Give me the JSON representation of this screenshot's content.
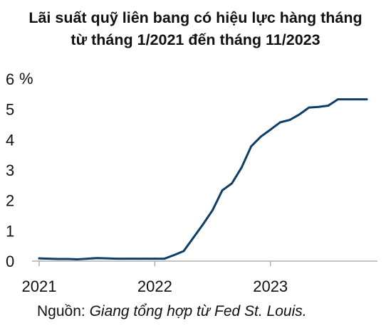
{
  "chart_data": {
    "type": "line",
    "title_line1": "Lãi suất quỹ liên bang có hiệu lực hàng tháng",
    "title_line2": "từ tháng 1/2021 đến tháng 11/2023",
    "y_unit": "%",
    "ylim": [
      0,
      6
    ],
    "y_ticks": [
      "6",
      "5",
      "4",
      "3",
      "2",
      "1",
      "0"
    ],
    "x_tick_labels": [
      "2021",
      "2022",
      "2023"
    ],
    "grid": false,
    "legend": "none",
    "line_color": "#0e3d66",
    "series": [
      {
        "x": [
          "2021-01",
          "2021-02",
          "2021-03",
          "2021-04",
          "2021-05",
          "2021-06",
          "2021-07",
          "2021-08",
          "2021-09",
          "2021-10",
          "2021-11",
          "2021-12",
          "2022-01",
          "2022-02",
          "2022-03",
          "2022-04",
          "2022-05",
          "2022-06",
          "2022-07",
          "2022-08",
          "2022-09",
          "2022-10",
          "2022-11",
          "2022-12",
          "2023-01",
          "2023-02",
          "2023-03",
          "2023-04",
          "2023-05",
          "2023-06",
          "2023-07",
          "2023-08",
          "2023-09",
          "2023-10",
          "2023-11"
        ],
        "values": [
          0.09,
          0.08,
          0.07,
          0.07,
          0.06,
          0.08,
          0.1,
          0.09,
          0.08,
          0.08,
          0.08,
          0.08,
          0.08,
          0.08,
          0.2,
          0.33,
          0.77,
          1.21,
          1.68,
          2.33,
          2.56,
          3.08,
          3.78,
          4.1,
          4.33,
          4.57,
          4.65,
          4.83,
          5.06,
          5.08,
          5.12,
          5.33,
          5.33,
          5.33,
          5.33
        ]
      }
    ]
  },
  "source": {
    "prefix": "Nguồn: ",
    "text": "Giang tổng hợp từ Fed St. Louis."
  }
}
